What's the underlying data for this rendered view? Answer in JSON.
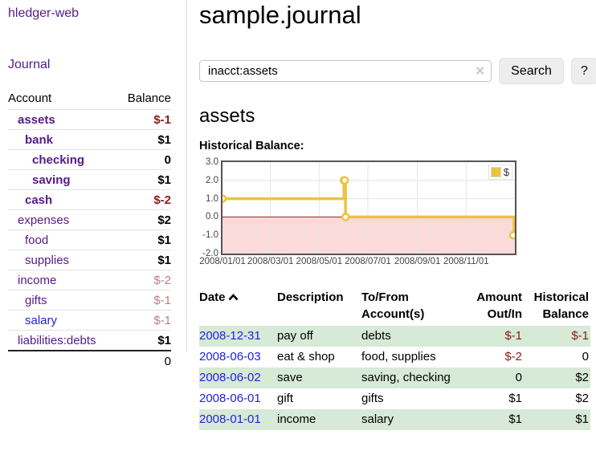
{
  "app": {
    "brand": "hledger-web"
  },
  "sidebar": {
    "nav": {
      "journal": "Journal"
    },
    "table_headers": {
      "account": "Account",
      "balance": "Balance"
    },
    "accounts": [
      {
        "name": "assets",
        "balance": "$-1"
      },
      {
        "name": "bank",
        "balance": "$1"
      },
      {
        "name": "checking",
        "balance": "0"
      },
      {
        "name": "saving",
        "balance": "$1"
      },
      {
        "name": "cash",
        "balance": "$-2"
      },
      {
        "name": "expenses",
        "balance": "$2"
      },
      {
        "name": "food",
        "balance": "$1"
      },
      {
        "name": "supplies",
        "balance": "$1"
      },
      {
        "name": "income",
        "balance": "$-2"
      },
      {
        "name": "gifts",
        "balance": "$-1"
      },
      {
        "name": "salary",
        "balance": "$-1"
      },
      {
        "name": "liabilities:debts",
        "balance": "$1"
      }
    ],
    "total": "0"
  },
  "main": {
    "title": "sample.journal",
    "search": {
      "value": "inacct:assets",
      "clear_icon": "✕",
      "button_label": "Search",
      "help_label": "?"
    },
    "account_heading": "assets",
    "chart_title": "Historical Balance:"
  },
  "chart_data": {
    "type": "line",
    "step": true,
    "title": "Historical Balance:",
    "series": [
      {
        "name": "$",
        "points": [
          [
            "2008/01/01",
            1
          ],
          [
            "2008/06/01",
            2
          ],
          [
            "2008/06/02",
            2
          ],
          [
            "2008/06/03",
            0
          ],
          [
            "2008/12/31",
            -1
          ]
        ]
      }
    ],
    "x_range": [
      "2008/01/01",
      "2009/01/01"
    ],
    "ylim": [
      -2,
      3
    ],
    "yticks": [
      3.0,
      2.0,
      1.0,
      0.0,
      -1.0,
      -2.0
    ],
    "xticks": [
      "2008/01/01",
      "2008/03/01",
      "2008/05/01",
      "2008/07/01",
      "2008/09/01",
      "2008/11/01"
    ],
    "xtick_labels": [
      "2008/01/01",
      "2008/03/01",
      "2008/05/01",
      "2008/07/01",
      "2008/09/01",
      "2008/11/01"
    ],
    "grid": true,
    "legend_position": "top-right",
    "colors": {
      "series": "#edc240",
      "zero_line": "#9e1b1b",
      "below_zero_fill": "#fbdada",
      "gridline": "#e6e6e6"
    }
  },
  "register": {
    "headers": {
      "date": "Date",
      "description": "Description",
      "account": "To/From Account(s)",
      "amount": "Amount Out/In",
      "balance": "Historical Balance"
    },
    "rows": [
      {
        "date": "2008-12-31",
        "description": "pay off",
        "accounts": "debts",
        "amount": "$-1",
        "balance": "$-1"
      },
      {
        "date": "2008-06-03",
        "description": "eat & shop",
        "accounts": "food, supplies",
        "amount": "$-2",
        "balance": "0"
      },
      {
        "date": "2008-06-02",
        "description": "save",
        "accounts": "saving, checking",
        "amount": "0",
        "balance": "$2"
      },
      {
        "date": "2008-06-01",
        "description": "gift",
        "accounts": "gifts",
        "amount": "$1",
        "balance": "$2"
      },
      {
        "date": "2008-01-01",
        "description": "income",
        "accounts": "salary",
        "amount": "$1",
        "balance": "$1"
      }
    ]
  },
  "colors": {
    "link_purple": "#551a8b",
    "link_blue": "#2222dd",
    "negative_strong": "#8f1a1a",
    "negative_light": "#c17d7d",
    "row_green": "#d7e9d7",
    "series_yellow": "#edc240"
  }
}
